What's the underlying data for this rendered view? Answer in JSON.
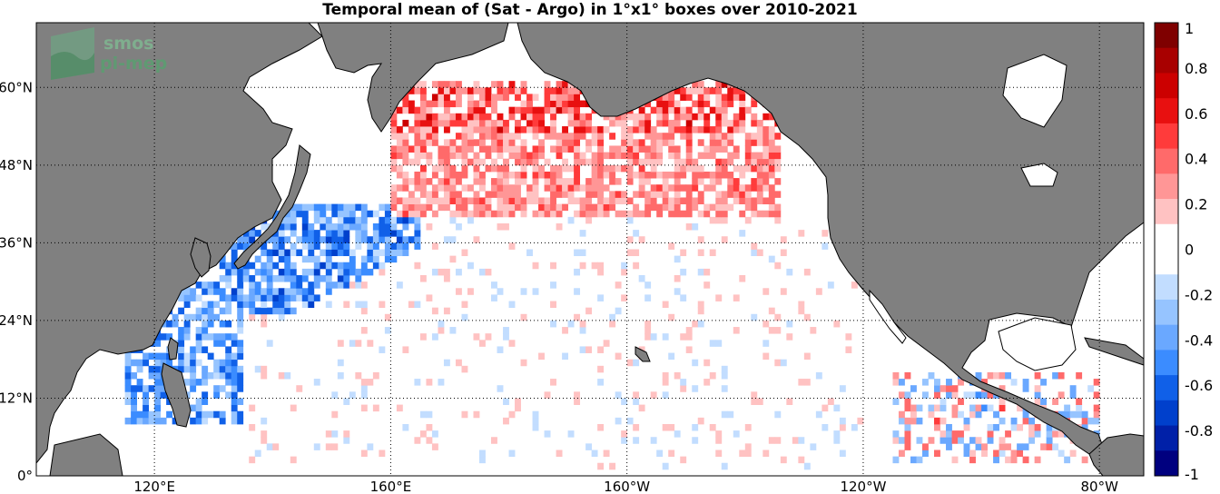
{
  "title": "Temporal mean of (Sat - Argo) in 1°x1° boxes over 2010-2021",
  "logo": {
    "line1": "smos",
    "line2": "pi-mep"
  },
  "map": {
    "lon_range": [
      100,
      287.5
    ],
    "lat_range": [
      0,
      70
    ],
    "lon_ticks": [
      {
        "value": 120,
        "label": "120°E"
      },
      {
        "value": 160,
        "label": "160°E"
      },
      {
        "value": 200,
        "label": "160°W"
      },
      {
        "value": 240,
        "label": "120°W"
      },
      {
        "value": 280,
        "label": "80°W"
      }
    ],
    "lat_ticks": [
      {
        "value": 0,
        "label": "0°"
      },
      {
        "value": 12,
        "label": "12°N"
      },
      {
        "value": 24,
        "label": "24°N"
      },
      {
        "value": 36,
        "label": "36°N"
      },
      {
        "value": 48,
        "label": "48°N"
      },
      {
        "value": 60,
        "label": "60°N"
      }
    ],
    "land_color": "#808080",
    "ocean_color": "#ffffff"
  },
  "colorbar": {
    "range": [
      -1,
      1
    ],
    "ticks": [
      "1",
      "0.8",
      "0.6",
      "0.4",
      "0.2",
      "0",
      "-0.2",
      "-0.4",
      "-0.6",
      "-0.8",
      "-1"
    ],
    "colors": [
      "#7f0000",
      "#a80000",
      "#cc0000",
      "#e81010",
      "#ff3b3b",
      "#ff6a6a",
      "#ff9696",
      "#ffc2c2",
      "#ffffff",
      "#ffffff",
      "#c2ddff",
      "#96c4ff",
      "#6aa8ff",
      "#3b8cff",
      "#1060e8",
      "#0040cc",
      "#0020a8",
      "#00007f"
    ]
  }
}
